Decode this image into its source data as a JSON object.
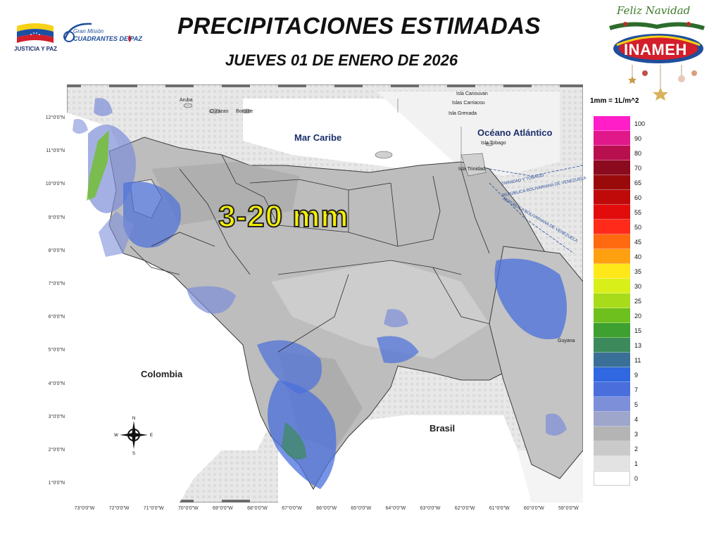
{
  "header": {
    "title": "PRECIPITACIONES ESTIMADAS",
    "subtitle": "JUEVES 01 DE ENERO DE 2026"
  },
  "logos": {
    "left_flag_text": "JUSTICIA Y PAZ",
    "gran_mision_top": "Gran Misión",
    "gran_mision_bottom": "CUADRANTES DE PAZ",
    "holiday_text": "Feliz Navidad",
    "agency": "INAMEH"
  },
  "unit_note": "1mm = 1L/m^2",
  "map": {
    "highlight_range": "3-20 mm",
    "labels": {
      "sea": "Mar Caribe",
      "ocean": "Océano Atlántico",
      "colombia": "Colombia",
      "brasil": "Brasil",
      "guyana": "Guyana"
    },
    "islands": {
      "aruba": "Aruba",
      "curazao": "Curazao",
      "bonaire": "Bonaire",
      "canouvan": "Isla Canouvan",
      "carriacou": "Islas Carriacou",
      "grenada": "Isla Grenada",
      "tobago": "Isla Tobago",
      "trinidad": "Isla Trinidad"
    },
    "boundaries": {
      "tt": "TRINIDAD Y TOBAGO",
      "ven1": "REPÚBLICA BOLIVARIANA DE VENEZUELA",
      "ven2": "REPÚBLICA BOLIVARIANA DE VENEZUELA"
    },
    "lat_ticks": [
      "12°0'0\"N",
      "11°0'0\"N",
      "10°0'0\"N",
      "9°0'0\"N",
      "8°0'0\"N",
      "7°0'0\"N",
      "6°0'0\"N",
      "5°0'0\"N",
      "4°0'0\"N",
      "3°0'0\"N",
      "2°0'0\"N",
      "1°0'0\"N"
    ],
    "lon_ticks": [
      "73°0'0\"W",
      "72°0'0\"W",
      "71°0'0\"W",
      "70°0'0\"W",
      "69°0'0\"W",
      "68°0'0\"W",
      "67°0'0\"W",
      "66°0'0\"W",
      "65°0'0\"W",
      "64°0'0\"W",
      "63°0'0\"W",
      "62°0'0\"W",
      "61°0'0\"W",
      "60°0'0\"W",
      "59°0'0\"W"
    ],
    "compass": {
      "n": "N",
      "s": "S",
      "e": "E",
      "w": "W"
    }
  },
  "legend": [
    {
      "label": "100",
      "color": "#ff1ec8"
    },
    {
      "label": "90",
      "color": "#e0188a"
    },
    {
      "label": "80",
      "color": "#b8104e"
    },
    {
      "label": "70",
      "color": "#8c0a1e"
    },
    {
      "label": "65",
      "color": "#9b0a0a"
    },
    {
      "label": "60",
      "color": "#c00a0a"
    },
    {
      "label": "55",
      "color": "#e20c0c"
    },
    {
      "label": "50",
      "color": "#ff2a1a"
    },
    {
      "label": "45",
      "color": "#ff6a10"
    },
    {
      "label": "40",
      "color": "#ffa010"
    },
    {
      "label": "35",
      "color": "#ffe81a"
    },
    {
      "label": "30",
      "color": "#d8ef1a"
    },
    {
      "label": "25",
      "color": "#a8dc1a"
    },
    {
      "label": "20",
      "color": "#6ec01e"
    },
    {
      "label": "15",
      "color": "#3ea030"
    },
    {
      "label": "13",
      "color": "#3c8a5c"
    },
    {
      "label": "11",
      "color": "#3a7098"
    },
    {
      "label": "9",
      "color": "#2f68e0"
    },
    {
      "label": "7",
      "color": "#4a6fdc"
    },
    {
      "label": "5",
      "color": "#7d8fd8"
    },
    {
      "label": "4",
      "color": "#9fa6cc"
    },
    {
      "label": "3",
      "color": "#b4b4b4"
    },
    {
      "label": "2",
      "color": "#cacaca"
    },
    {
      "label": "1",
      "color": "#e3e3e3"
    },
    {
      "label": "0",
      "color": "#ffffff"
    }
  ]
}
